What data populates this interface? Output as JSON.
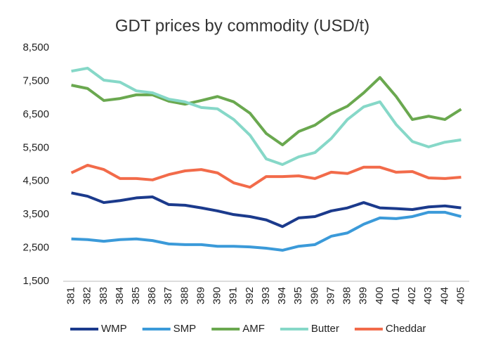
{
  "chart_data": {
    "type": "line",
    "title": "GDT prices by commodity (USD/t)",
    "categories": [
      "381",
      "382",
      "383",
      "384",
      "385",
      "386",
      "387",
      "388",
      "389",
      "390",
      "391",
      "392",
      "393",
      "394",
      "395",
      "396",
      "397",
      "398",
      "399",
      "400",
      "401",
      "402",
      "403",
      "404",
      "405"
    ],
    "ylim": [
      1500,
      8500
    ],
    "yticks": [
      {
        "value": 1500,
        "label": "1,500"
      },
      {
        "value": 2500,
        "label": "2,500"
      },
      {
        "value": 3500,
        "label": "3,500"
      },
      {
        "value": 4500,
        "label": "4,500"
      },
      {
        "value": 5500,
        "label": "5,500"
      },
      {
        "value": 6500,
        "label": "6,500"
      },
      {
        "value": 7500,
        "label": "7,500"
      },
      {
        "value": 8500,
        "label": "8,500"
      }
    ],
    "grid": false,
    "legend": "bottom",
    "series": [
      {
        "name": "WMP",
        "color": "#1b3a8c",
        "values": [
          4150,
          4050,
          3860,
          3920,
          4000,
          4030,
          3800,
          3780,
          3700,
          3610,
          3500,
          3440,
          3340,
          3140,
          3400,
          3440,
          3610,
          3700,
          3860,
          3700,
          3680,
          3650,
          3730,
          3760,
          3700
        ]
      },
      {
        "name": "SMP",
        "color": "#3b9ad9",
        "values": [
          2770,
          2750,
          2700,
          2750,
          2770,
          2720,
          2620,
          2600,
          2600,
          2550,
          2550,
          2530,
          2490,
          2430,
          2550,
          2600,
          2850,
          2950,
          3210,
          3400,
          3380,
          3440,
          3570,
          3570,
          3440
        ]
      },
      {
        "name": "AMF",
        "color": "#6aa84f",
        "values": [
          7380,
          7280,
          6920,
          6980,
          7090,
          7090,
          6900,
          6810,
          6920,
          7040,
          6880,
          6540,
          5930,
          5590,
          5990,
          6180,
          6520,
          6750,
          7150,
          7610,
          7040,
          6350,
          6450,
          6350,
          6660
        ]
      },
      {
        "name": "Butter",
        "color": "#86d8c8",
        "values": [
          7800,
          7890,
          7530,
          7470,
          7210,
          7150,
          6960,
          6880,
          6710,
          6670,
          6350,
          5880,
          5170,
          5000,
          5230,
          5360,
          5780,
          6350,
          6730,
          6880,
          6200,
          5690,
          5530,
          5670,
          5740
        ]
      },
      {
        "name": "Cheddar",
        "color": "#f26b4a",
        "values": [
          4750,
          4980,
          4850,
          4580,
          4580,
          4540,
          4700,
          4810,
          4850,
          4750,
          4450,
          4320,
          4640,
          4640,
          4660,
          4580,
          4770,
          4730,
          4920,
          4920,
          4770,
          4790,
          4600,
          4580,
          4620
        ]
      }
    ]
  }
}
